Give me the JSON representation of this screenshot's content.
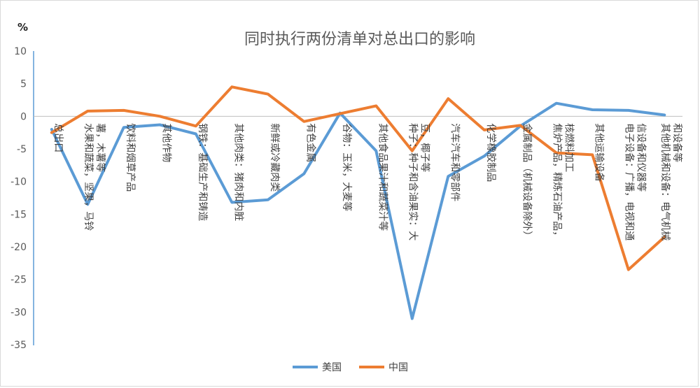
{
  "chart_data": {
    "type": "line",
    "title": "同时执行两份清单对总出口的影响",
    "ylabel": "%",
    "ylim": [
      -35,
      10
    ],
    "yticks": [
      10,
      5,
      0,
      -5,
      -10,
      -15,
      -20,
      -25,
      -30,
      -35
    ],
    "grid": false,
    "legend_position": "bottom",
    "categories": [
      [
        "总出口"
      ],
      [
        "水果和蔬菜，坚果，马铃",
        "薯，木薯等"
      ],
      [
        "饮料和烟草产品"
      ],
      [
        "其他作物"
      ],
      [
        "钢铁：基础生产和铸造"
      ],
      [
        "其他肉类：猪肉和内脏"
      ],
      [
        "新鲜或冷藏肉类"
      ],
      [
        "有色金属"
      ],
      [
        "谷物：玉米，大麦等"
      ],
      [
        "其他食品果汁和蔬菜汁等"
      ],
      [
        "种子：种子和含油果实：大",
        "豆，椰子等"
      ],
      [
        "汽车汽车和零部件"
      ],
      [
        "化学橡胶制品"
      ],
      [
        "金属制品（机械设备除外）"
      ],
      [
        "焦炉产品，精炼石油产品，",
        "核燃料加工"
      ],
      [
        "其他运输设备"
      ],
      [
        "电子设备：广播，电视和通",
        "信设备和仪器等"
      ],
      [
        "其他机械和设备：电气机械",
        "和设备等"
      ]
    ],
    "series": [
      {
        "name": "美国",
        "color": "#5B9BD5",
        "values": [
          -2.0,
          -13.5,
          -1.7,
          -1.3,
          -2.7,
          -13.2,
          -12.8,
          -8.8,
          0.5,
          -5.3,
          -31.0,
          -9.2,
          -6.1,
          -1.5,
          2.0,
          1.0,
          0.9,
          0.2
        ]
      },
      {
        "name": "中国",
        "color": "#ED7D31",
        "values": [
          -2.5,
          0.8,
          0.9,
          0.0,
          -1.5,
          4.5,
          3.4,
          -0.8,
          0.4,
          1.6,
          -5.3,
          2.7,
          -2.1,
          -1.4,
          -5.6,
          -5.9,
          -23.5,
          -18.5
        ]
      }
    ]
  }
}
